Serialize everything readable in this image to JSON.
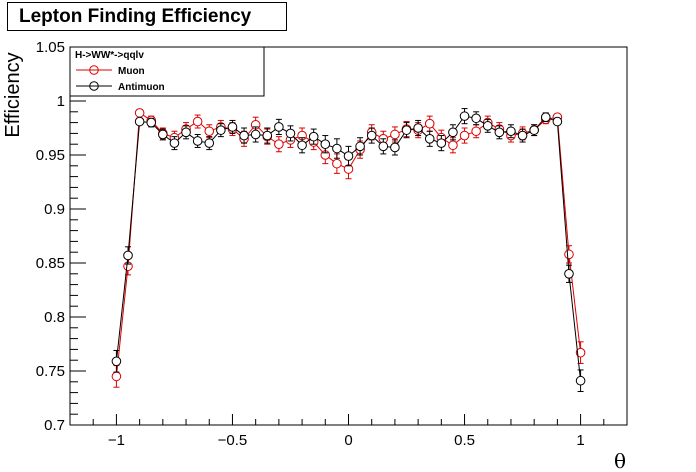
{
  "chart_data": {
    "type": "scatter",
    "title": "Lepton Finding Efficiency",
    "xlabel": "θ",
    "ylabel": "Efficiency",
    "xlim": [
      -1.2,
      1.2
    ],
    "ylim": [
      0.7,
      1.05
    ],
    "x_ticks": [
      -1,
      -0.5,
      0,
      0.5,
      1
    ],
    "x_tick_labels": [
      "−1",
      "−0.5",
      "0",
      "0.5",
      "1"
    ],
    "y_ticks": [
      0.7,
      0.75,
      0.8,
      0.85,
      0.9,
      0.95,
      1,
      1.05
    ],
    "y_tick_labels": [
      "0.7",
      "0.75",
      "0.8",
      "0.85",
      "0.9",
      "0.95",
      "1",
      "1.05"
    ],
    "grid": false,
    "legend": {
      "placement": "top-left",
      "header": "H->WW*->qqlv"
    },
    "series": [
      {
        "name": "Muon",
        "color": "#dd0000",
        "x": [
          -1.0,
          -0.95,
          -0.9,
          -0.85,
          -0.8,
          -0.75,
          -0.7,
          -0.65,
          -0.6,
          -0.55,
          -0.5,
          -0.45,
          -0.4,
          -0.35,
          -0.3,
          -0.25,
          -0.2,
          -0.15,
          -0.1,
          -0.05,
          0.0,
          0.05,
          0.1,
          0.15,
          0.2,
          0.25,
          0.3,
          0.35,
          0.4,
          0.45,
          0.5,
          0.55,
          0.6,
          0.65,
          0.7,
          0.75,
          0.8,
          0.85,
          0.9,
          0.95,
          1.0
        ],
        "y": [
          0.745,
          0.847,
          0.989,
          0.982,
          0.97,
          0.966,
          0.974,
          0.981,
          0.972,
          0.976,
          0.974,
          0.965,
          0.978,
          0.967,
          0.96,
          0.964,
          0.968,
          0.962,
          0.95,
          0.942,
          0.937,
          0.955,
          0.971,
          0.965,
          0.969,
          0.974,
          0.973,
          0.979,
          0.966,
          0.959,
          0.968,
          0.972,
          0.98,
          0.974,
          0.968,
          0.97,
          0.973,
          0.983,
          0.985,
          0.858,
          0.767
        ],
        "errors": [
          0.01,
          0.008,
          0.003,
          0.004,
          0.005,
          0.006,
          0.006,
          0.006,
          0.006,
          0.006,
          0.006,
          0.007,
          0.007,
          0.007,
          0.007,
          0.007,
          0.007,
          0.007,
          0.008,
          0.009,
          0.009,
          0.008,
          0.007,
          0.007,
          0.007,
          0.007,
          0.007,
          0.007,
          0.007,
          0.007,
          0.007,
          0.006,
          0.006,
          0.006,
          0.006,
          0.006,
          0.005,
          0.004,
          0.003,
          0.008,
          0.01
        ]
      },
      {
        "name": "Antimuon",
        "color": "#000000",
        "x": [
          -1.0,
          -0.95,
          -0.9,
          -0.85,
          -0.8,
          -0.75,
          -0.7,
          -0.65,
          -0.6,
          -0.55,
          -0.5,
          -0.45,
          -0.4,
          -0.35,
          -0.3,
          -0.25,
          -0.2,
          -0.15,
          -0.1,
          -0.05,
          0.0,
          0.05,
          0.1,
          0.15,
          0.2,
          0.25,
          0.3,
          0.35,
          0.4,
          0.45,
          0.5,
          0.55,
          0.6,
          0.65,
          0.7,
          0.75,
          0.8,
          0.85,
          0.9,
          0.95,
          1.0
        ],
        "y": [
          0.759,
          0.857,
          0.981,
          0.98,
          0.969,
          0.961,
          0.971,
          0.963,
          0.961,
          0.973,
          0.976,
          0.968,
          0.969,
          0.968,
          0.976,
          0.97,
          0.959,
          0.967,
          0.96,
          0.956,
          0.949,
          0.958,
          0.968,
          0.958,
          0.957,
          0.973,
          0.975,
          0.965,
          0.961,
          0.971,
          0.986,
          0.984,
          0.977,
          0.971,
          0.972,
          0.968,
          0.973,
          0.985,
          0.981,
          0.84,
          0.741
        ],
        "errors": [
          0.01,
          0.008,
          0.003,
          0.004,
          0.005,
          0.006,
          0.006,
          0.006,
          0.006,
          0.006,
          0.006,
          0.007,
          0.007,
          0.007,
          0.007,
          0.007,
          0.007,
          0.007,
          0.008,
          0.009,
          0.009,
          0.008,
          0.007,
          0.007,
          0.007,
          0.007,
          0.007,
          0.007,
          0.007,
          0.007,
          0.007,
          0.006,
          0.006,
          0.006,
          0.006,
          0.006,
          0.005,
          0.004,
          0.003,
          0.008,
          0.01
        ]
      }
    ]
  }
}
